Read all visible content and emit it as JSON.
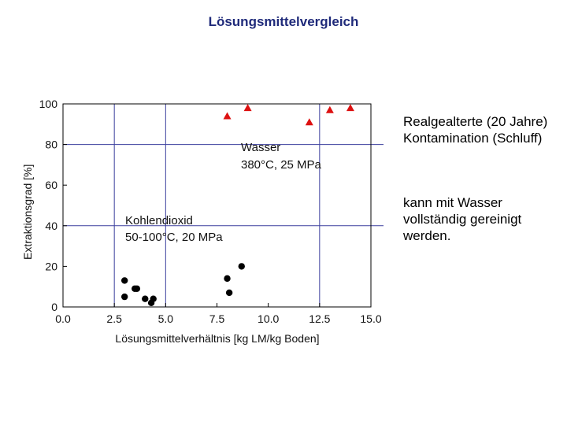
{
  "slide": {
    "title": "Lösungsmittelvergleich",
    "side_text_1": "Realgealterte (20 Jahre) Kontamination (Schluff)",
    "side_text_2": "kann mit Wasser vollständig gereinigt werden."
  },
  "colors": {
    "title": "#1f2a7a",
    "grid": "#3b3f9e",
    "water_marker": "#dd1111",
    "co2_marker": "#000000"
  },
  "chart_data": {
    "type": "scatter",
    "xlabel": "Lösungsmittelverhältnis [kg LM/kg Boden]",
    "ylabel": "Extraktionsgrad [%]",
    "xlim": [
      0,
      15
    ],
    "ylim": [
      0,
      100
    ],
    "x_ticks": [
      "0.0",
      "2.5",
      "5.0",
      "7.5",
      "10.0",
      "12.5",
      "15.0"
    ],
    "y_ticks": [
      "0",
      "20",
      "40",
      "60",
      "80",
      "100"
    ],
    "grid_x": [
      2.5,
      5.0,
      12.5
    ],
    "grid_y": [
      40,
      80
    ],
    "annotations": {
      "water_1": "Wasser",
      "water_2": "380°C, 25 MPa",
      "co2_1": "Kohlendioxid",
      "co2_2": "50-100°C, 20 MPa"
    },
    "series": [
      {
        "marker": "triangle",
        "color": "#dd1111",
        "points": [
          [
            8.0,
            94
          ],
          [
            9.0,
            98
          ],
          [
            12.0,
            91
          ],
          [
            13.0,
            97
          ],
          [
            14.0,
            98
          ]
        ]
      },
      {
        "marker": "circle",
        "color": "#000000",
        "points": [
          [
            3.0,
            13
          ],
          [
            3.0,
            5
          ],
          [
            3.5,
            9
          ],
          [
            3.6,
            9
          ],
          [
            4.0,
            4
          ],
          [
            4.3,
            2
          ],
          [
            4.4,
            4
          ],
          [
            8.0,
            14
          ],
          [
            8.1,
            7
          ],
          [
            8.7,
            20
          ]
        ]
      }
    ]
  }
}
